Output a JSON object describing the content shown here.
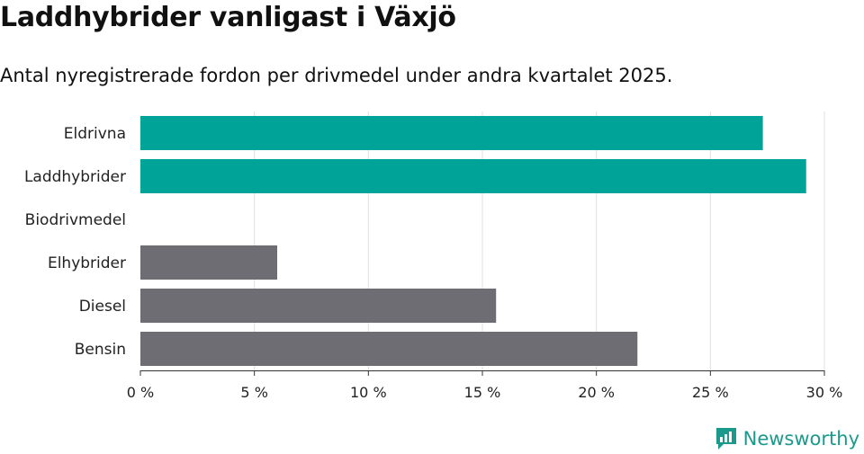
{
  "title": "Laddhybrider vanligast i Växjö",
  "subtitle": "Antal nyregistrerade fordon per drivmedel under andra kvartalet 2025.",
  "brand": "Newsworthy",
  "colors": {
    "highlight": "#00a398",
    "default": "#6e6d74",
    "grid": "#e0e0e0",
    "axis": "#333333",
    "brand": "#1a9a8c"
  },
  "chart_data": {
    "type": "bar",
    "orientation": "horizontal",
    "categories": [
      "Eldrivna",
      "Laddhybrider",
      "Biodrivmedel",
      "Elhybrider",
      "Diesel",
      "Bensin"
    ],
    "values": [
      27.3,
      29.2,
      0,
      6.0,
      15.6,
      21.8
    ],
    "highlighted": [
      true,
      true,
      false,
      false,
      false,
      false
    ],
    "xlim": [
      0,
      30
    ],
    "xticks": [
      0,
      5,
      10,
      15,
      20,
      25,
      30
    ],
    "xtick_labels": [
      "0 %",
      "5 %",
      "10 %",
      "15 %",
      "20 %",
      "25 %",
      "30 %"
    ],
    "grid": true
  }
}
